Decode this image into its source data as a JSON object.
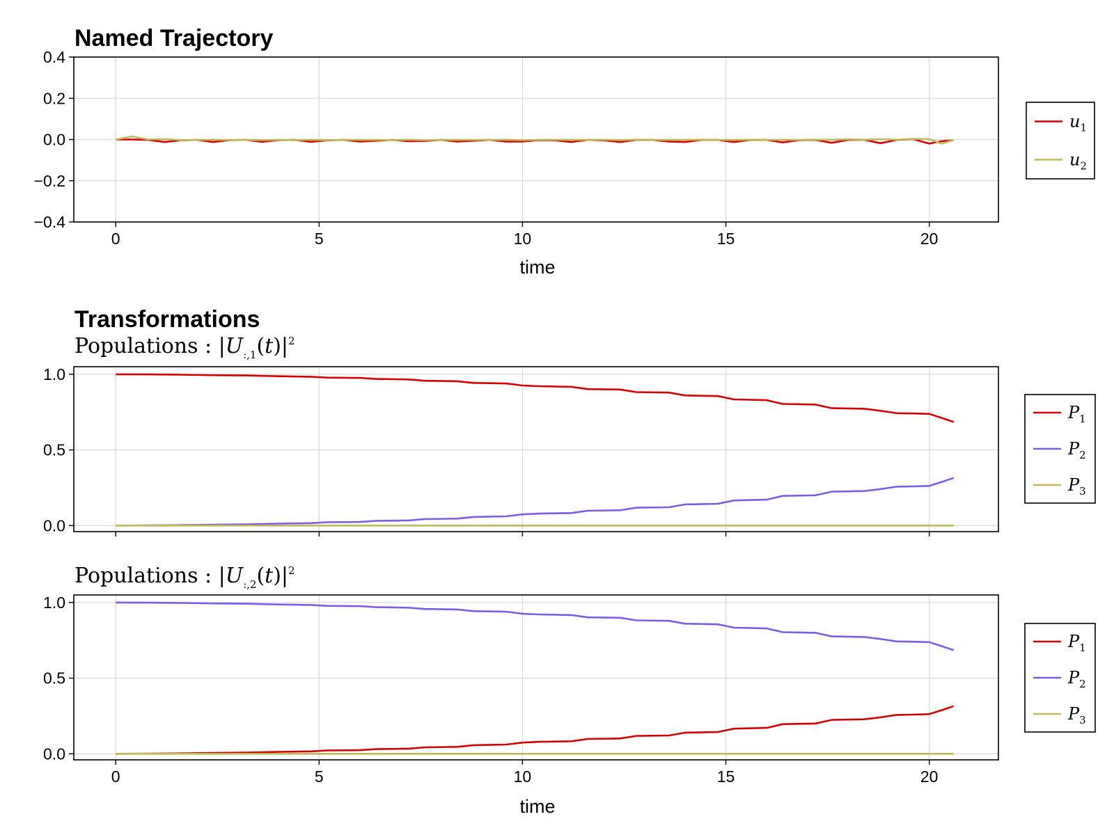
{
  "colors": {
    "red": "#d40000",
    "purple": "#7d5ce6",
    "olive": "#c1b95a",
    "grid": "#dcdcdc",
    "frame": "#000000"
  },
  "chart_data": [
    {
      "type": "line",
      "title": "Named Trajectory",
      "subtitle": "",
      "xlabel": "time",
      "ylabel": "",
      "xlim": [
        -1.03,
        21.7
      ],
      "ylim": [
        -0.4,
        0.4
      ],
      "xticks": [
        "0",
        "5",
        "10",
        "15",
        "20"
      ],
      "yticks": [
        "0.4",
        "0.2",
        "0.0",
        "−0.2",
        "−0.4"
      ],
      "ytick_values": [
        0.4,
        0.2,
        0.0,
        -0.2,
        -0.4
      ],
      "xtick_values": [
        0,
        5,
        10,
        15,
        20
      ],
      "show_xticklabels": true,
      "x": [
        0,
        0.4,
        0.8,
        1.2,
        1.6,
        2.0,
        2.4,
        2.8,
        3.2,
        3.6,
        4.0,
        4.4,
        4.8,
        5.2,
        5.6,
        6.0,
        6.4,
        6.8,
        7.2,
        7.6,
        8.0,
        8.4,
        8.8,
        9.2,
        9.6,
        10.0,
        10.4,
        10.8,
        11.2,
        11.6,
        12.0,
        12.4,
        12.8,
        13.2,
        13.6,
        14.0,
        14.4,
        14.8,
        15.2,
        15.6,
        16.0,
        16.4,
        16.8,
        17.2,
        17.6,
        18.0,
        18.4,
        18.8,
        19.2,
        19.6,
        20.0,
        20.3,
        20.6
      ],
      "series": [
        {
          "name": "u",
          "sub": "1",
          "color": "#d40000",
          "values": [
            0,
            0,
            -0.002,
            -0.012,
            -0.004,
            -0.002,
            -0.012,
            -0.003,
            -0.002,
            -0.011,
            -0.003,
            -0.002,
            -0.011,
            -0.004,
            -0.002,
            -0.01,
            -0.006,
            -0.002,
            -0.008,
            -0.007,
            -0.002,
            -0.01,
            -0.006,
            -0.002,
            -0.01,
            -0.01,
            -0.003,
            -0.004,
            -0.012,
            -0.002,
            -0.004,
            -0.012,
            -0.002,
            -0.002,
            -0.01,
            -0.012,
            -0.002,
            -0.002,
            -0.012,
            -0.002,
            -0.002,
            -0.014,
            -0.003,
            -0.002,
            -0.016,
            -0.002,
            -0.001,
            -0.018,
            -0.002,
            0.002,
            -0.02,
            -0.008,
            -0.004
          ]
        },
        {
          "name": "u",
          "sub": "2",
          "color": "#c1b95a",
          "values": [
            0,
            0.015,
            0,
            0.002,
            -0.003,
            -0.002,
            -0.001,
            -0.003,
            -0.002,
            -0.003,
            -0.002,
            -0.003,
            -0.001,
            -0.003,
            -0.002,
            -0.002,
            -0.002,
            -0.003,
            -0.001,
            -0.003,
            -0.002,
            -0.002,
            -0.002,
            -0.002,
            -0.001,
            -0.003,
            -0.002,
            -0.001,
            -0.002,
            -0.002,
            -0.001,
            -0.003,
            -0.001,
            -0.002,
            -0.002,
            -0.002,
            -0.001,
            -0.002,
            -0.002,
            -0.001,
            -0.002,
            -0.001,
            -0.002,
            -0.001,
            -0.001,
            0.001,
            -0.001,
            0.002,
            -0.001,
            0.003,
            0.002,
            -0.02,
            -0.003
          ]
        }
      ],
      "legend": "right"
    },
    {
      "type": "line",
      "title": "Transformations",
      "subtitle": "Populations : |U:,1(t)|²",
      "xlabel": "",
      "ylabel": "",
      "xlim": [
        -1.03,
        21.7
      ],
      "ylim": [
        -0.04,
        1.05
      ],
      "yticks": [
        "1.0",
        "0.5",
        "0.0"
      ],
      "ytick_values": [
        1.0,
        0.5,
        0.0
      ],
      "xtick_values": [
        0,
        5,
        10,
        15,
        20
      ],
      "show_xticklabels": false,
      "x": [
        0,
        0.8,
        1.6,
        2.4,
        3.2,
        4.0,
        4.8,
        5.2,
        6.0,
        6.4,
        7.2,
        7.6,
        8.4,
        8.8,
        9.6,
        10.0,
        10.4,
        11.2,
        11.6,
        12.4,
        12.8,
        13.6,
        14.0,
        14.8,
        15.2,
        16.0,
        16.4,
        17.2,
        17.6,
        18.4,
        18.8,
        19.2,
        19.6,
        20.0,
        20.3,
        20.6
      ],
      "series": [
        {
          "name": "P",
          "sub": "1",
          "color": "#d40000",
          "values": [
            1.0,
            0.999,
            0.997,
            0.994,
            0.992,
            0.987,
            0.984,
            0.978,
            0.976,
            0.969,
            0.966,
            0.957,
            0.954,
            0.943,
            0.939,
            0.926,
            0.921,
            0.917,
            0.902,
            0.899,
            0.882,
            0.879,
            0.86,
            0.856,
            0.834,
            0.829,
            0.804,
            0.8,
            0.776,
            0.772,
            0.759,
            0.743,
            0.741,
            0.738,
            0.712,
            0.685
          ]
        },
        {
          "name": "P",
          "sub": "2",
          "color": "#7d5ce6",
          "values": [
            0.0,
            0.001,
            0.003,
            0.006,
            0.008,
            0.013,
            0.016,
            0.022,
            0.024,
            0.031,
            0.034,
            0.043,
            0.046,
            0.057,
            0.061,
            0.074,
            0.079,
            0.083,
            0.098,
            0.101,
            0.118,
            0.121,
            0.14,
            0.144,
            0.166,
            0.171,
            0.196,
            0.2,
            0.224,
            0.228,
            0.241,
            0.257,
            0.259,
            0.262,
            0.288,
            0.315
          ]
        },
        {
          "name": "P",
          "sub": "3",
          "color": "#c1b95a",
          "values": [
            0,
            0,
            0,
            0,
            0,
            0,
            0,
            0,
            0,
            0,
            0,
            0,
            0,
            0,
            0,
            0,
            0,
            0,
            0,
            0,
            0,
            0,
            0,
            0,
            0,
            0,
            0,
            0,
            0,
            0,
            0,
            0,
            0,
            0,
            0,
            0
          ]
        }
      ],
      "legend": "right"
    },
    {
      "type": "line",
      "title": "",
      "subtitle": "Populations : |U:,2(t)|²",
      "xlabel": "time",
      "ylabel": "",
      "xlim": [
        -1.03,
        21.7
      ],
      "ylim": [
        -0.04,
        1.05
      ],
      "xticks": [
        "0",
        "5",
        "10",
        "15",
        "20"
      ],
      "yticks": [
        "1.0",
        "0.5",
        "0.0"
      ],
      "ytick_values": [
        1.0,
        0.5,
        0.0
      ],
      "xtick_values": [
        0,
        5,
        10,
        15,
        20
      ],
      "show_xticklabels": true,
      "x": [
        0,
        0.8,
        1.6,
        2.4,
        3.2,
        4.0,
        4.8,
        5.2,
        6.0,
        6.4,
        7.2,
        7.6,
        8.4,
        8.8,
        9.6,
        10.0,
        10.4,
        11.2,
        11.6,
        12.4,
        12.8,
        13.6,
        14.0,
        14.8,
        15.2,
        16.0,
        16.4,
        17.2,
        17.6,
        18.4,
        18.8,
        19.2,
        19.6,
        20.0,
        20.3,
        20.6
      ],
      "series": [
        {
          "name": "P",
          "sub": "1",
          "color": "#d40000",
          "values": [
            0.0,
            0.001,
            0.003,
            0.006,
            0.008,
            0.013,
            0.016,
            0.022,
            0.024,
            0.031,
            0.034,
            0.043,
            0.046,
            0.057,
            0.061,
            0.074,
            0.079,
            0.083,
            0.098,
            0.101,
            0.118,
            0.121,
            0.14,
            0.144,
            0.166,
            0.171,
            0.196,
            0.2,
            0.224,
            0.228,
            0.241,
            0.257,
            0.259,
            0.262,
            0.288,
            0.315
          ]
        },
        {
          "name": "P",
          "sub": "2",
          "color": "#7d5ce6",
          "values": [
            1.0,
            0.999,
            0.997,
            0.994,
            0.992,
            0.987,
            0.984,
            0.978,
            0.976,
            0.969,
            0.966,
            0.957,
            0.954,
            0.943,
            0.939,
            0.926,
            0.921,
            0.917,
            0.902,
            0.899,
            0.882,
            0.879,
            0.86,
            0.856,
            0.834,
            0.829,
            0.804,
            0.8,
            0.776,
            0.772,
            0.759,
            0.743,
            0.741,
            0.738,
            0.712,
            0.685
          ]
        },
        {
          "name": "P",
          "sub": "3",
          "color": "#c1b95a",
          "values": [
            0,
            0,
            0,
            0,
            0,
            0,
            0,
            0,
            0,
            0,
            0,
            0,
            0,
            0,
            0,
            0,
            0,
            0,
            0,
            0,
            0,
            0,
            0,
            0,
            0,
            0,
            0,
            0,
            0,
            0,
            0,
            0,
            0,
            0,
            0,
            0
          ]
        }
      ],
      "legend": "right"
    }
  ]
}
